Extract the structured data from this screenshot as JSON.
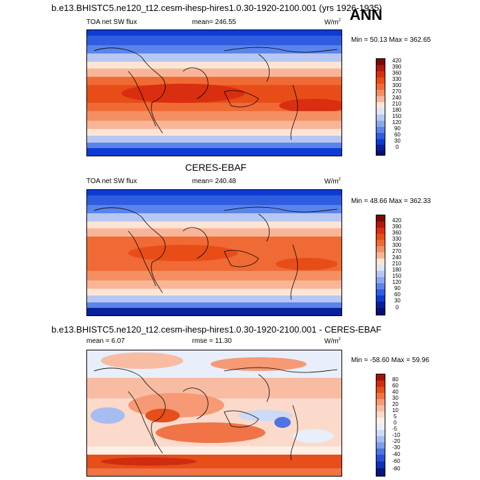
{
  "page": {
    "title": "b.e13.BHISTC5.ne120_t12.cesm-ihesp-hires1.0.30-1920-2100.001 (yrs 1926-1935)",
    "season": "ANN"
  },
  "panels": [
    {
      "id": "model",
      "left_label": "TOA net SW flux",
      "center_label": "mean= 246.55",
      "right_label": "W/m",
      "right_sup": "2",
      "minmax": "Min =  50.13 Max = 362.65",
      "colorbar_labels": [
        "420",
        "390",
        "360",
        "330",
        "300",
        "270",
        "240",
        "210",
        "180",
        "150",
        "120",
        "90",
        "60",
        "30",
        "0"
      ]
    },
    {
      "id": "obs",
      "heading": "CERES-EBAF",
      "left_label": "TOA net SW flux",
      "center_label": "mean= 240.48",
      "right_label": "W/m",
      "right_sup": "2",
      "minmax": "Min =  48.66 Max = 362.33",
      "colorbar_labels": [
        "420",
        "390",
        "360",
        "330",
        "300",
        "270",
        "240",
        "210",
        "180",
        "150",
        "120",
        "90",
        "60",
        "30",
        "0"
      ]
    },
    {
      "id": "diff",
      "heading": "b.e13.BHISTC5.ne120_t12.cesm-ihesp-hires1.0.30-1920-2100.001 - CERES-EBAF",
      "left_label": "mean =   6.07",
      "center_label": "rmse =  11.30",
      "right_label": "W/m",
      "right_sup": "2",
      "minmax": "Min = -58.60 Max =  59.96",
      "colorbar_labels": [
        "80",
        "60",
        "40",
        "30",
        "20",
        "10",
        "5",
        "0",
        "-5",
        "-10",
        "-20",
        "-30",
        "-40",
        "-60",
        "-80"
      ]
    }
  ],
  "colors": {
    "abs_scale": [
      "#7a0a07",
      "#b2180e",
      "#d92f10",
      "#e84d18",
      "#f06a35",
      "#f48f62",
      "#f8b598",
      "#fde4d4",
      "#dde4f5",
      "#b5c7f2",
      "#8aa8ef",
      "#5b84ea",
      "#2f5de0",
      "#0d3bd3",
      "#0a1f9c",
      "#061173"
    ],
    "diff_scale": [
      "#a3140b",
      "#d02c10",
      "#e64e1a",
      "#f07445",
      "#f59a75",
      "#f8bca2",
      "#fbdacb",
      "#fdeee6",
      "#e8eefa",
      "#cdd9f5",
      "#a7bdf0",
      "#7d9cea",
      "#5073e2",
      "#2b4fd6",
      "#1030b8",
      "#06157c"
    ]
  }
}
